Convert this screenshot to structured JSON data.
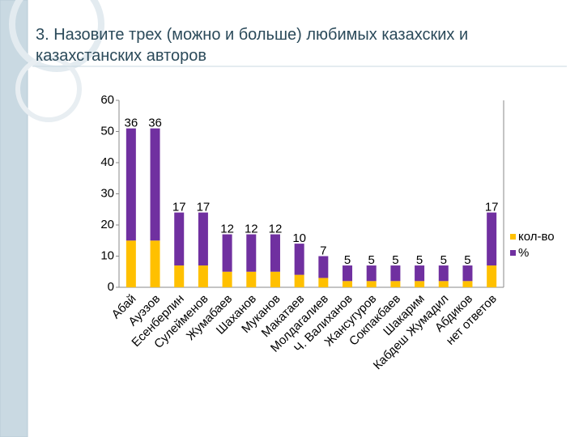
{
  "chart_data": {
    "type": "stacked_bar",
    "title": "3. Назовите трех (можно и больше) любимых казахских и казахстанских авторов",
    "categories": [
      "Абай",
      "Ауэзов",
      "Есенберлин",
      "Сулейменов",
      "Жумабаев",
      "Шаханов",
      "Муканов",
      "Макатаев",
      "Молдагалиев",
      "Ч. Валиханов",
      "Жансугуров",
      "Сокпакбаев",
      "Шакарим",
      "Кабдеш Жумадил",
      "Абдиков",
      "нет ответов"
    ],
    "series": [
      {
        "name": "кол-во",
        "color": "#ffc000",
        "values": [
          15,
          15,
          7,
          7,
          5,
          5,
          5,
          4,
          3,
          2,
          2,
          2,
          2,
          2,
          2,
          7
        ]
      },
      {
        "name": "%",
        "color": "#7030a0",
        "values": [
          36,
          36,
          17,
          17,
          12,
          12,
          12,
          10,
          7,
          5,
          5,
          5,
          5,
          5,
          5,
          17
        ],
        "show_labels": true
      }
    ],
    "ylim": [
      0,
      60
    ],
    "yticks": [
      0,
      10,
      20,
      30,
      40,
      50,
      60
    ],
    "legend": "right"
  }
}
